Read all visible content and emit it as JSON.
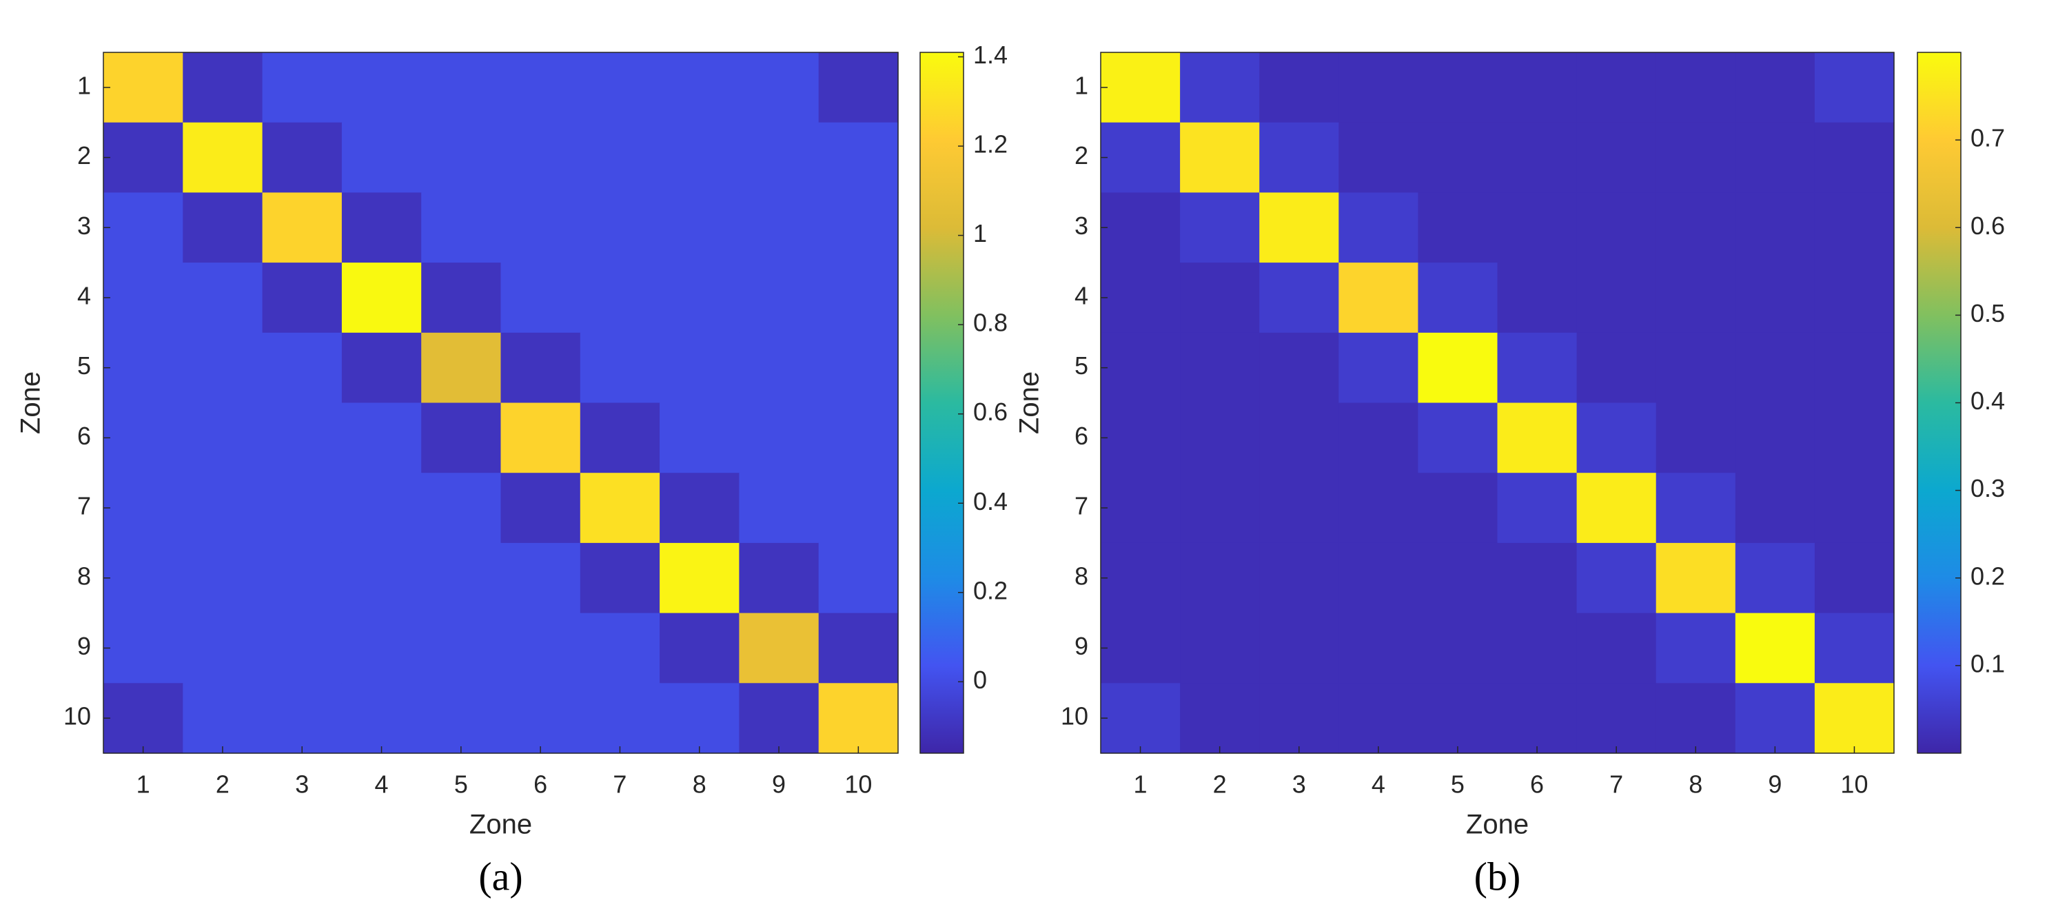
{
  "chart_data": [
    {
      "type": "heatmap",
      "panel_label": "(a)",
      "xlabel": "Zone",
      "ylabel": "Zone",
      "categories": [
        "1",
        "2",
        "3",
        "4",
        "5",
        "6",
        "7",
        "8",
        "9",
        "10"
      ],
      "colormap": "parula",
      "clim": [
        -0.16,
        1.41
      ],
      "cticks": [
        0,
        0.2,
        0.4,
        0.6,
        0.8,
        1,
        1.2,
        1.4
      ],
      "values": [
        [
          1.25,
          -0.1,
          0,
          0,
          0,
          0,
          0,
          0,
          0,
          -0.1
        ],
        [
          -0.1,
          1.35,
          -0.1,
          0,
          0,
          0,
          0,
          0,
          0,
          0
        ],
        [
          0,
          -0.1,
          1.25,
          -0.1,
          0,
          0,
          0,
          0,
          0,
          0
        ],
        [
          0,
          0,
          -0.1,
          1.4,
          -0.1,
          0,
          0,
          0,
          0,
          0
        ],
        [
          0,
          0,
          0,
          -0.1,
          1.05,
          -0.1,
          0,
          0,
          0,
          0
        ],
        [
          0,
          0,
          0,
          0,
          -0.1,
          1.25,
          -0.1,
          0,
          0,
          0
        ],
        [
          0,
          0,
          0,
          0,
          0,
          -0.1,
          1.3,
          -0.1,
          0,
          0
        ],
        [
          0,
          0,
          0,
          0,
          0,
          0,
          -0.1,
          1.38,
          -0.1,
          0
        ],
        [
          0,
          0,
          0,
          0,
          0,
          0,
          0,
          -0.1,
          1.1,
          -0.1
        ],
        [
          -0.1,
          0,
          0,
          0,
          0,
          0,
          0,
          0,
          -0.1,
          1.25
        ]
      ]
    },
    {
      "type": "heatmap",
      "panel_label": "(b)",
      "xlabel": "Zone",
      "ylabel": "Zone",
      "categories": [
        "1",
        "2",
        "3",
        "4",
        "5",
        "6",
        "7",
        "8",
        "9",
        "10"
      ],
      "colormap": "parula",
      "clim": [
        0,
        0.8
      ],
      "cticks": [
        0.1,
        0.2,
        0.3,
        0.4,
        0.5,
        0.6,
        0.7
      ],
      "values": [
        [
          0.78,
          0.05,
          0.02,
          0.02,
          0.02,
          0.02,
          0.02,
          0.02,
          0.02,
          0.05
        ],
        [
          0.05,
          0.75,
          0.05,
          0.02,
          0.02,
          0.02,
          0.02,
          0.02,
          0.02,
          0.02
        ],
        [
          0.02,
          0.05,
          0.77,
          0.05,
          0.02,
          0.02,
          0.02,
          0.02,
          0.02,
          0.02
        ],
        [
          0.02,
          0.02,
          0.05,
          0.72,
          0.05,
          0.02,
          0.02,
          0.02,
          0.02,
          0.02
        ],
        [
          0.02,
          0.02,
          0.02,
          0.05,
          0.8,
          0.05,
          0.02,
          0.02,
          0.02,
          0.02
        ],
        [
          0.02,
          0.02,
          0.02,
          0.02,
          0.05,
          0.77,
          0.05,
          0.02,
          0.02,
          0.02
        ],
        [
          0.02,
          0.02,
          0.02,
          0.02,
          0.02,
          0.05,
          0.77,
          0.05,
          0.02,
          0.02
        ],
        [
          0.02,
          0.02,
          0.02,
          0.02,
          0.02,
          0.02,
          0.05,
          0.74,
          0.05,
          0.02
        ],
        [
          0.02,
          0.02,
          0.02,
          0.02,
          0.02,
          0.02,
          0.02,
          0.05,
          0.8,
          0.05
        ],
        [
          0.05,
          0.02,
          0.02,
          0.02,
          0.02,
          0.02,
          0.02,
          0.02,
          0.05,
          0.77
        ]
      ]
    }
  ]
}
